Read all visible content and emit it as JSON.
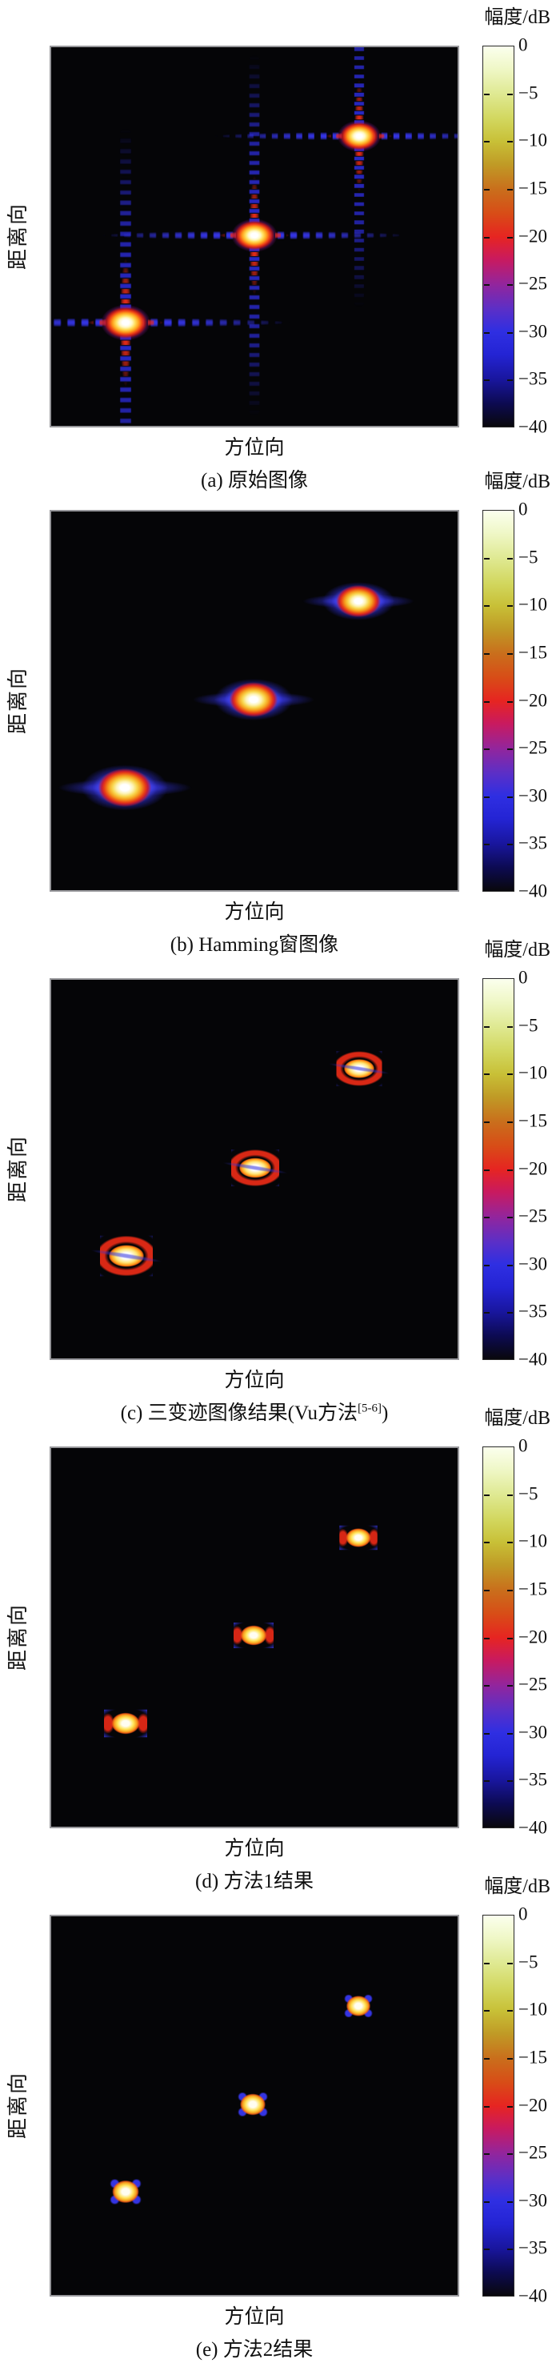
{
  "figure": {
    "xlabel": "方位向",
    "ylabel": "距离向",
    "colorbar": {
      "label": "幅度/dB",
      "ticks": [
        "0",
        "−5",
        "−10",
        "−15",
        "−20",
        "−25",
        "−30",
        "−35",
        "−40"
      ]
    },
    "panels": [
      {
        "id": "a",
        "caption_pre": "(a) 原始图像",
        "caption_sup": "",
        "caption_post": ""
      },
      {
        "id": "b",
        "caption_pre": "(b) Hamming窗图像",
        "caption_sup": "",
        "caption_post": ""
      },
      {
        "id": "c",
        "caption_pre": "(c) 三变迹图像结果(Vu方法",
        "caption_sup": "[5-6]",
        "caption_post": ")"
      },
      {
        "id": "d",
        "caption_pre": "(d) 方法1结果",
        "caption_sup": "",
        "caption_post": ""
      },
      {
        "id": "e",
        "caption_pre": "(e) 方法2结果",
        "caption_sup": "",
        "caption_post": ""
      }
    ]
  },
  "chart_data": [
    {
      "type": "heatmap",
      "panel_label": "(a) 原始图像",
      "description": "Original SAR point-target image: three point targets on a diagonal with strong cross-shaped range/azimuth dotted sidelobes and X-shaped wing sidelobes",
      "xlabel": "方位向",
      "ylabel": "距离向",
      "colorbar_label": "幅度/dB",
      "colorbar_ticks_db": [
        0,
        -5,
        -10,
        -15,
        -20,
        -25,
        -30,
        -35,
        -40
      ],
      "amplitude_range_db": [
        -40,
        0
      ],
      "targets_rel": [
        {
          "x": 0.183,
          "y": 0.728,
          "scale": 1.08
        },
        {
          "x": 0.5,
          "y": 0.496,
          "scale": 1.0
        },
        {
          "x": 0.757,
          "y": 0.235,
          "scale": 0.95
        }
      ]
    },
    {
      "type": "heatmap",
      "panel_label": "(b) Hamming窗图像",
      "description": "Hamming-windowed image: sidelobes suppressed, widened elliptical main lobes with blue halo and short horizontal wings",
      "xlabel": "方位向",
      "ylabel": "距离向",
      "colorbar_label": "幅度/dB",
      "colorbar_ticks_db": [
        0,
        -5,
        -10,
        -15,
        -20,
        -25,
        -30,
        -35,
        -40
      ],
      "amplitude_range_db": [
        -40,
        0
      ],
      "targets_rel": [
        {
          "x": 0.181,
          "y": 0.73,
          "scale": 1.1
        },
        {
          "x": 0.499,
          "y": 0.496,
          "scale": 1.0
        },
        {
          "x": 0.756,
          "y": 0.237,
          "scale": 0.92
        }
      ]
    },
    {
      "type": "heatmap",
      "panel_label": "(c) 三变迹图像结果(Vu方法[5-6])",
      "description": "Tri-apodization result (Vu method [5-6]): compact main lobes ringed by red first sidelobe and thin blue outer ring with small diagonal tails",
      "xlabel": "方位向",
      "ylabel": "距离向",
      "colorbar_label": "幅度/dB",
      "colorbar_ticks_db": [
        0,
        -5,
        -10,
        -15,
        -20,
        -25,
        -30,
        -35,
        -40
      ],
      "amplitude_range_db": [
        -40,
        0
      ],
      "targets_rel": [
        {
          "x": 0.186,
          "y": 0.73,
          "scale": 1.1
        },
        {
          "x": 0.501,
          "y": 0.496,
          "scale": 1.0
        },
        {
          "x": 0.758,
          "y": 0.234,
          "scale": 0.95
        }
      ]
    },
    {
      "type": "heatmap",
      "panel_label": "(d) 方法1结果",
      "description": "Method 1 result: small rectangular yellow-orange main lobes with red side bars and faint blue halo",
      "xlabel": "方位向",
      "ylabel": "距离向",
      "colorbar_label": "幅度/dB",
      "colorbar_ticks_db": [
        0,
        -5,
        -10,
        -15,
        -20,
        -25,
        -30,
        -35,
        -40
      ],
      "amplitude_range_db": [
        -40,
        0
      ],
      "targets_rel": [
        {
          "x": 0.184,
          "y": 0.728,
          "scale": 1.08
        },
        {
          "x": 0.498,
          "y": 0.495,
          "scale": 1.0
        },
        {
          "x": 0.756,
          "y": 0.236,
          "scale": 0.95
        }
      ]
    },
    {
      "type": "heatmap",
      "panel_label": "(e) 方法2结果",
      "description": "Method 2 result: most compact main lobes, small yellow-orange cores with four tiny blue corner lobes",
      "xlabel": "方位向",
      "ylabel": "距离向",
      "colorbar_label": "幅度/dB",
      "colorbar_ticks_db": [
        0,
        -5,
        -10,
        -15,
        -20,
        -25,
        -30,
        -35,
        -40
      ],
      "amplitude_range_db": [
        -40,
        0
      ],
      "targets_rel": [
        {
          "x": 0.183,
          "y": 0.728,
          "scale": 1.05
        },
        {
          "x": 0.497,
          "y": 0.497,
          "scale": 1.0
        },
        {
          "x": 0.755,
          "y": 0.237,
          "scale": 0.95
        }
      ]
    }
  ]
}
